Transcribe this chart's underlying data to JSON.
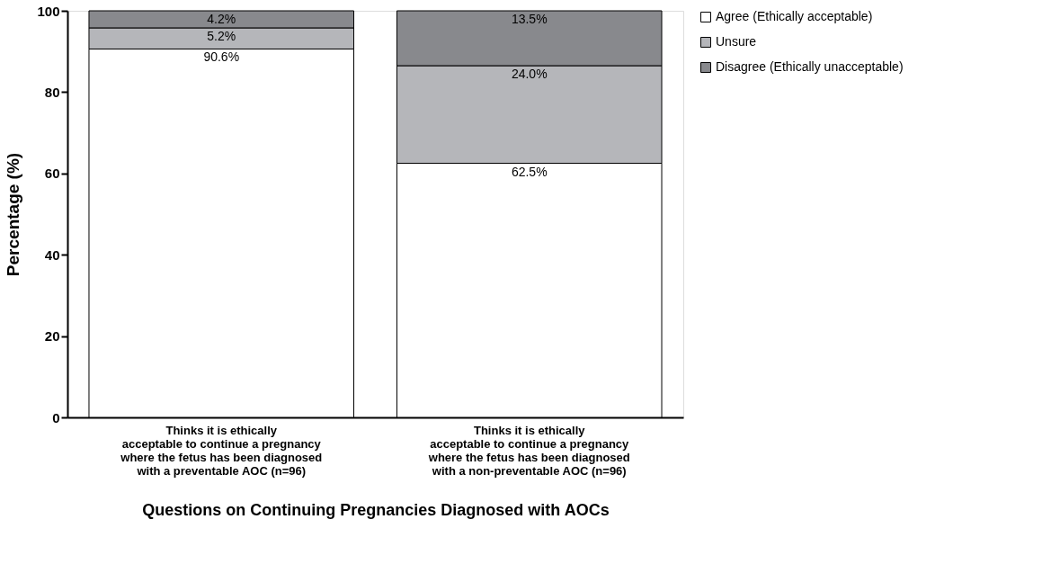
{
  "chart_data": {
    "type": "bar",
    "stacked": true,
    "categories": [
      "Thinks it is ethically\nacceptable to continue a pregnancy\nwhere the fetus has been diagnosed\nwith a preventable AOC (n=96)",
      "Thinks it is ethically\nacceptable to continue a pregnancy\nwhere the fetus has been diagnosed\nwith a non-preventable AOC (n=96)"
    ],
    "series": [
      {
        "name": "Agree (Ethically acceptable)",
        "color": "#ffffff",
        "values": [
          90.6,
          62.5
        ]
      },
      {
        "name": "Unsure",
        "color": "#b5b6ba",
        "values": [
          5.2,
          24.0
        ]
      },
      {
        "name": "Disagree (Ethically unacceptable)",
        "color": "#88898d",
        "values": [
          4.2,
          13.5
        ]
      }
    ],
    "value_labels": [
      [
        "90.6%",
        "62.5%"
      ],
      [
        "5.2%",
        "24.0%"
      ],
      [
        "4.2%",
        "13.5%"
      ]
    ],
    "xlabel": "Questions on Continuing Pregnancies Diagnosed with AOCs",
    "ylabel": "Percentage (%)",
    "ylim": [
      0,
      100
    ],
    "yticks": [
      0,
      20,
      40,
      60,
      80,
      100
    ],
    "grid": false,
    "legend": "top right"
  }
}
